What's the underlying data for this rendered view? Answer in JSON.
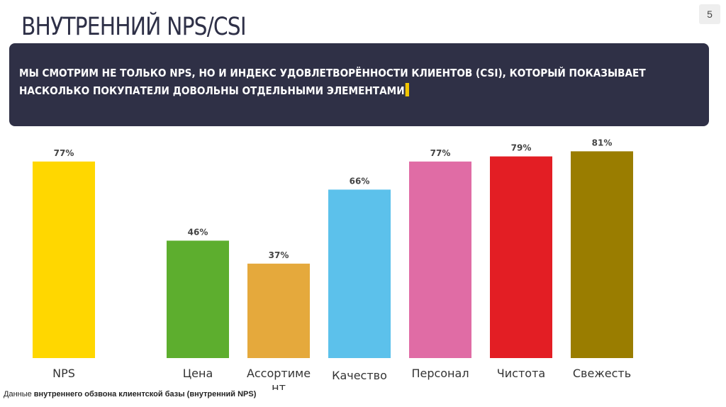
{
  "header": {
    "title": "ВНУТРЕННИЙ NPS/CSI",
    "page_number": "5"
  },
  "banner": {
    "line1": "МЫ СМОТРИМ НЕ ТОЛЬКО NPS, НО И ИНДЕКС УДОВЛЕТВОРЁННОСТИ КЛИЕНТОВ (CSI), КОТОРЫЙ ПОКАЗЫВАЕТ",
    "line2": "НАСКОЛЬКО ПОКУПАТЕЛИ ДОВОЛЬНЫ ОТДЕЛЬНЫМИ ЭЛЕМЕНТАМИ",
    "accent": "#f2c500"
  },
  "footer": {
    "source_prefix": "Данные ",
    "source_bold": "внутреннего обзвона клиентской базы (внутренний NPS)"
  },
  "chart_data": {
    "type": "bar",
    "categories": [
      "NPS",
      "Цена",
      "Ассортимент",
      "Качество",
      "Персонал",
      "Чистота",
      "Свежесть"
    ],
    "category_display": [
      "NPS",
      "Цена",
      "Ассортиме\nнт",
      "Качество",
      "Персонал",
      "Чистота",
      "Свежесть"
    ],
    "values": [
      77,
      46,
      37,
      66,
      77,
      79,
      81
    ],
    "data_labels": [
      "77%",
      "46%",
      "37%",
      "66%",
      "77%",
      "79%",
      "81%"
    ],
    "colors": [
      "#FFD700",
      "#5DAE2E",
      "#E5A93C",
      "#5CC1EB",
      "#E06CA5",
      "#E31E24",
      "#9A7D00"
    ],
    "ylim": [
      0,
      100
    ],
    "grid": false,
    "legend": "none"
  }
}
